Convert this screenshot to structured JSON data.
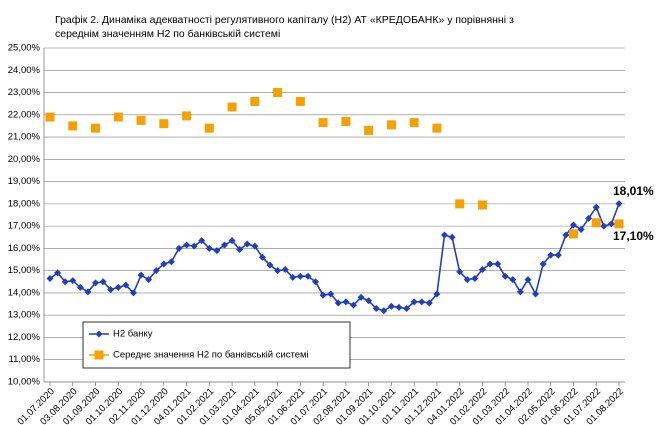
{
  "chart_data": {
    "type": "line",
    "title": [
      "Графік 2. Динаміка адекватності регулятивного капіталу (Н2) АТ «КРЕДОБАНК» у порівнянні з",
      "середнім значенням Н2 по банківській системі"
    ],
    "categories": [
      "01.07.2020",
      null,
      null,
      "03.08.2020",
      null,
      null,
      "01.09.2020",
      null,
      null,
      "01.10.2020",
      null,
      null,
      "02.11.2020",
      null,
      null,
      "01.12.2020",
      null,
      null,
      "04.01.2021",
      null,
      null,
      "01.02.2021",
      null,
      null,
      "01.03.2021",
      null,
      null,
      "01.04.2021",
      null,
      null,
      "05.05.2021",
      null,
      null,
      "01.06.2021",
      null,
      null,
      "01.07.2021",
      null,
      null,
      "02.08.2021",
      null,
      null,
      "01.09.2021",
      null,
      null,
      "01.10.2021",
      null,
      null,
      "01.11.2021",
      null,
      null,
      "01.12.2021",
      null,
      null,
      "04.01.2022",
      null,
      null,
      "01.02.2022",
      null,
      null,
      "01.03.2022",
      null,
      null,
      "01.04.2022",
      null,
      null,
      "02.05.2022",
      null,
      null,
      "01.06.2022",
      null,
      null,
      "01.07.2022",
      null,
      null,
      "01.08.2022"
    ],
    "series": [
      {
        "name": "Н2 банку",
        "color": "#1f3fbf",
        "marker": "diamond",
        "line": true,
        "values": [
          14.65,
          14.9,
          14.5,
          14.55,
          14.25,
          14.05,
          14.45,
          14.5,
          14.15,
          14.25,
          14.35,
          14.0,
          14.8,
          14.6,
          15.0,
          15.3,
          15.4,
          16.0,
          16.15,
          16.1,
          16.35,
          16.0,
          15.9,
          16.15,
          16.35,
          15.95,
          16.2,
          16.1,
          15.6,
          15.25,
          15.0,
          15.05,
          14.7,
          14.75,
          14.75,
          14.5,
          13.9,
          13.95,
          13.55,
          13.6,
          13.45,
          13.8,
          13.65,
          13.3,
          13.2,
          13.4,
          13.35,
          13.3,
          13.6,
          13.6,
          13.55,
          13.95,
          16.6,
          16.5,
          14.95,
          14.6,
          14.65,
          15.05,
          15.3,
          15.3,
          14.75,
          14.6,
          14.05,
          14.6,
          13.95,
          15.3,
          15.7,
          15.7,
          16.6,
          17.05,
          16.85,
          17.35,
          17.85,
          17.0,
          17.1,
          18.01
        ],
        "value_labels": [
          null,
          null,
          null,
          null,
          null,
          null,
          null,
          null,
          null,
          null,
          null,
          null,
          null,
          null,
          null,
          null,
          null,
          null,
          null,
          null,
          null,
          null,
          null,
          null,
          null,
          null,
          null,
          null,
          null,
          null,
          null,
          null,
          null,
          null,
          null,
          null,
          null,
          null,
          null,
          null,
          null,
          null,
          null,
          null,
          null,
          null,
          null,
          null,
          null,
          null,
          null,
          null,
          null,
          null,
          null,
          null,
          null,
          null,
          null,
          null,
          null,
          null,
          null,
          null,
          null,
          null,
          null,
          null,
          null,
          null,
          null,
          null,
          null,
          null,
          null,
          "18,01%"
        ]
      },
      {
        "name": "Середнє значення Н2 по банківській системі",
        "color": "#f5a100",
        "label_color": "#a0561a",
        "marker": "square",
        "line": false,
        "values": [
          21.9,
          null,
          null,
          21.5,
          null,
          null,
          21.4,
          null,
          null,
          21.9,
          null,
          null,
          21.75,
          null,
          null,
          21.6,
          null,
          null,
          21.95,
          null,
          null,
          21.4,
          null,
          null,
          22.35,
          null,
          null,
          22.6,
          null,
          null,
          23.0,
          null,
          null,
          22.6,
          null,
          null,
          21.65,
          null,
          null,
          21.7,
          null,
          null,
          21.3,
          null,
          null,
          21.55,
          null,
          null,
          21.65,
          null,
          null,
          21.4,
          null,
          null,
          18.0,
          null,
          null,
          17.95,
          null,
          null,
          null,
          null,
          null,
          null,
          null,
          null,
          null,
          null,
          null,
          16.65,
          null,
          null,
          17.15,
          null,
          null,
          17.1
        ],
        "value_labels": [
          null,
          null,
          null,
          null,
          null,
          null,
          null,
          null,
          null,
          null,
          null,
          null,
          null,
          null,
          null,
          null,
          null,
          null,
          null,
          null,
          null,
          null,
          null,
          null,
          null,
          null,
          null,
          null,
          null,
          null,
          null,
          null,
          null,
          null,
          null,
          null,
          null,
          null,
          null,
          null,
          null,
          null,
          null,
          null,
          null,
          null,
          null,
          null,
          null,
          null,
          null,
          null,
          null,
          null,
          null,
          null,
          null,
          null,
          null,
          null,
          null,
          null,
          null,
          null,
          null,
          null,
          null,
          null,
          null,
          null,
          null,
          null,
          null,
          null,
          null,
          "17,10%"
        ]
      }
    ],
    "ylim": [
      10,
      25
    ],
    "yticks": [
      {
        "value": 10,
        "label": "10,00%"
      },
      {
        "value": 11,
        "label": "11,00%"
      },
      {
        "value": 12,
        "label": "12,00%"
      },
      {
        "value": 13,
        "label": "13,00%"
      },
      {
        "value": 14,
        "label": "14,00%"
      },
      {
        "value": 15,
        "label": "15,00%"
      },
      {
        "value": 16,
        "label": "16,00%"
      },
      {
        "value": 17,
        "label": "17,00%"
      },
      {
        "value": 18,
        "label": "18,00%"
      },
      {
        "value": 19,
        "label": "19,00%"
      },
      {
        "value": 20,
        "label": "20,00%"
      },
      {
        "value": 21,
        "label": "21,00%"
      },
      {
        "value": 22,
        "label": "22,00%"
      },
      {
        "value": 23,
        "label": "23,00%"
      },
      {
        "value": 24,
        "label": "24,00%"
      },
      {
        "value": 25,
        "label": "25,00%"
      }
    ],
    "grid": true,
    "legend": "lower left"
  }
}
